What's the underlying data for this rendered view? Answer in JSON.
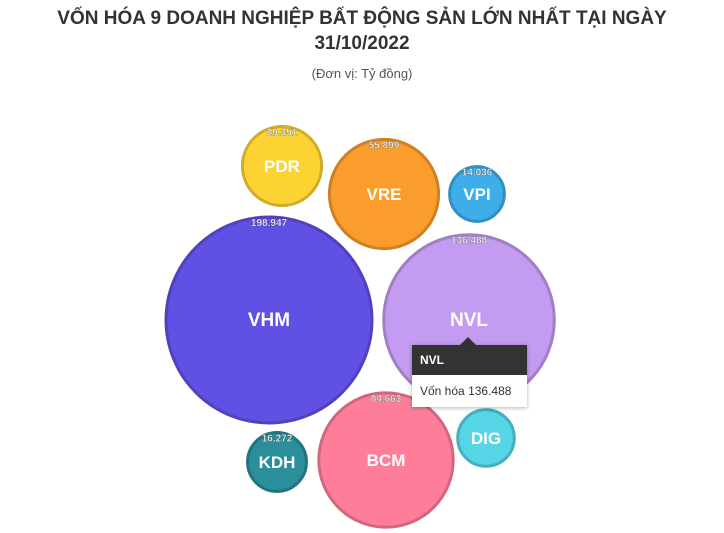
{
  "chart_data": {
    "type": "bubble",
    "title": "VỐN HÓA 9 DOANH NGHIỆP BẤT ĐỘNG SẢN LỚN NHẤT TẠI NGÀY 31/10/2022",
    "subtitle": "(Đơn vị: Tỷ đồng)",
    "categories": [
      "PDR",
      "VRE",
      "VPI",
      "VHM",
      "NVL",
      "KDH",
      "BCM",
      "DIG"
    ],
    "values": [
      29351,
      55899,
      14036,
      198947,
      136488,
      16272,
      84663,
      15000
    ],
    "value_labels": [
      "29.351",
      "55.899",
      "14.036",
      "198.947",
      "136.488",
      "16.272",
      "84.663",
      null
    ],
    "colors": [
      "#fdd333",
      "#fb9d2c",
      "#3daee9",
      "#6150e4",
      "#c39bf0",
      "#2a8f9a",
      "#fe7e9a",
      "#55d5e6"
    ],
    "tooltip": {
      "category": "NVL",
      "label": "Vốn hóa",
      "value_label": "136.488"
    }
  }
}
